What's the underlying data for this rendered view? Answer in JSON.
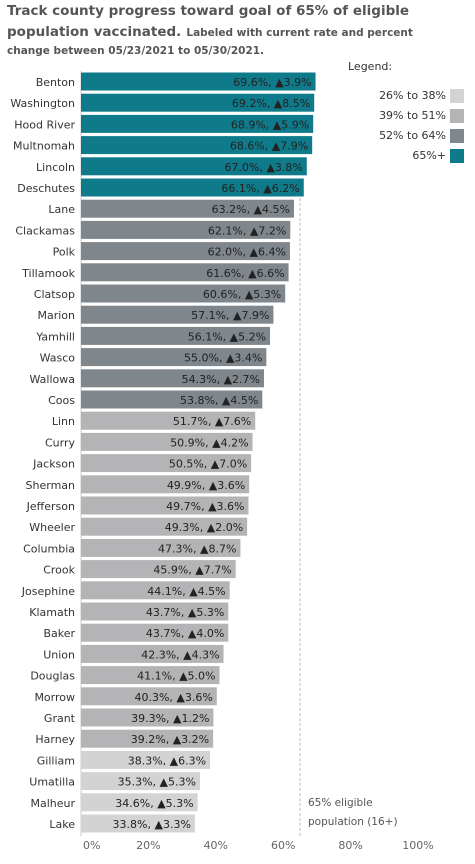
{
  "title": {
    "main_line1": "Track county progress toward goal of 65% of eligible",
    "main_line2": "population vaccinated.",
    "sub_line2": "Labeled with current rate and percent",
    "sub_line3": "change between 05/23/2021 to 05/30/2021."
  },
  "legend": {
    "title": "Legend:",
    "items": [
      {
        "label": "26% to 38%",
        "color": "#d3d3d3"
      },
      {
        "label": "39% to 51%",
        "color": "#b4b4b6"
      },
      {
        "label": "52% to 64%",
        "color": "#7f868c"
      },
      {
        "label": "65%+",
        "color": "#0f7a8a"
      }
    ]
  },
  "goal_annotation": {
    "line1": "65% eligible",
    "line2": "population (16+)",
    "value": 65
  },
  "chart_data": {
    "type": "bar",
    "orientation": "horizontal",
    "xlim": [
      0,
      100
    ],
    "x_ticks": [
      "0%",
      "20%",
      "40%",
      "60%",
      "80%",
      "100%"
    ],
    "x_tick_values": [
      0,
      20,
      40,
      60,
      80,
      100
    ],
    "categories": [
      "Benton",
      "Washington",
      "Hood River",
      "Multnomah",
      "Lincoln",
      "Deschutes",
      "Lane",
      "Clackamas",
      "Polk",
      "Tillamook",
      "Clatsop",
      "Marion",
      "Yamhill",
      "Wasco",
      "Wallowa",
      "Coos",
      "Linn",
      "Curry",
      "Jackson",
      "Sherman",
      "Jefferson",
      "Wheeler",
      "Columbia",
      "Crook",
      "Josephine",
      "Klamath",
      "Baker",
      "Union",
      "Douglas",
      "Morrow",
      "Grant",
      "Harney",
      "Gilliam",
      "Umatilla",
      "Malheur",
      "Lake"
    ],
    "values": [
      69.6,
      69.2,
      68.9,
      68.6,
      67.0,
      66.1,
      63.2,
      62.1,
      62.0,
      61.6,
      60.6,
      57.1,
      56.1,
      55.0,
      54.3,
      53.8,
      51.7,
      50.9,
      50.5,
      49.9,
      49.7,
      49.3,
      47.3,
      45.9,
      44.1,
      43.7,
      43.7,
      42.3,
      41.1,
      40.3,
      39.3,
      39.2,
      38.3,
      35.3,
      34.6,
      33.8
    ],
    "labels": [
      "69.6%, ▲3.9%",
      "69.2%, ▲8.5%",
      "68.9%, ▲5.9%",
      "68.6%, ▲7.9%",
      "67.0%, ▲3.8%",
      "66.1%, ▲6.2%",
      "63.2%, ▲4.5%",
      "62.1%, ▲7.2%",
      "62.0%, ▲6.4%",
      "61.6%, ▲6.6%",
      "60.6%, ▲5.3%",
      "57.1%, ▲7.9%",
      "56.1%, ▲5.2%",
      "55.0%, ▲3.4%",
      "54.3%, ▲2.7%",
      "53.8%, ▲4.5%",
      "51.7%, ▲7.6%",
      "50.9%, ▲4.2%",
      "50.5%, ▲7.0%",
      "49.9%, ▲3.6%",
      "49.7%, ▲3.6%",
      "49.3%, ▲2.0%",
      "47.3%, ▲8.7%",
      "45.9%, ▲7.7%",
      "44.1%, ▲4.5%",
      "43.7%, ▲5.3%",
      "43.7%, ▲4.0%",
      "42.3%, ▲4.3%",
      "41.1%, ▲5.0%",
      "40.3%, ▲3.6%",
      "39.3%, ▲1.2%",
      "39.2%, ▲3.2%",
      "38.3%, ▲6.3%",
      "35.3%, ▲5.3%",
      "34.6%, ▲5.3%",
      "33.8%, ▲3.3%"
    ],
    "grid": false
  }
}
